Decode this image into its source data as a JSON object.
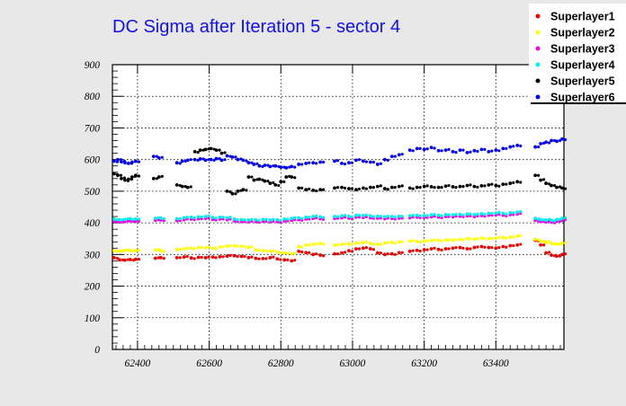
{
  "chart_data": {
    "type": "scatter",
    "title": "DC Sigma after Iteration 5 - sector 4",
    "xlabel": "",
    "ylabel": "",
    "xlim": [
      62330,
      63590
    ],
    "ylim": [
      0,
      900
    ],
    "x_ticks": [
      62400,
      62600,
      62800,
      63000,
      63200,
      63400
    ],
    "y_ticks": [
      0,
      100,
      200,
      300,
      400,
      500,
      600,
      700,
      800,
      900
    ],
    "grid": true,
    "legend_position": "top-right",
    "colors": {
      "background": "#e8e8e8",
      "plot_background": "#ffffff",
      "title": "#1010ee"
    },
    "series": [
      {
        "name": "Superlayer1",
        "color": "#ee0000",
        "x": [
          62335,
          62350,
          62365,
          62380,
          62395,
          62450,
          62465,
          62510,
          62530,
          62550,
          62570,
          62590,
          62610,
          62630,
          62650,
          62670,
          62690,
          62710,
          62730,
          62750,
          62770,
          62790,
          62810,
          62830,
          62850,
          62870,
          62890,
          62910,
          62950,
          62970,
          62990,
          63010,
          63030,
          63050,
          63070,
          63090,
          63110,
          63130,
          63160,
          63180,
          63200,
          63220,
          63240,
          63260,
          63280,
          63300,
          63320,
          63340,
          63360,
          63380,
          63400,
          63420,
          63440,
          63460,
          63510,
          63525,
          63540,
          63555,
          63570,
          63585
        ],
        "y": [
          290,
          283,
          282,
          284,
          285,
          288,
          290,
          290,
          292,
          289,
          291,
          290,
          292,
          293,
          295,
          296,
          294,
          290,
          288,
          287,
          290,
          286,
          283,
          280,
          310,
          306,
          300,
          298,
          302,
          305,
          312,
          318,
          320,
          318,
          305,
          300,
          302,
          306,
          310,
          313,
          315,
          318,
          316,
          318,
          320,
          322,
          318,
          322,
          325,
          322,
          320,
          325,
          328,
          330,
          345,
          330,
          305,
          298,
          295,
          300
        ]
      },
      {
        "name": "Superlayer2",
        "color": "#ffff00",
        "x": [
          62335,
          62350,
          62365,
          62380,
          62395,
          62450,
          62465,
          62510,
          62530,
          62550,
          62570,
          62590,
          62610,
          62630,
          62650,
          62670,
          62690,
          62710,
          62730,
          62750,
          62770,
          62790,
          62810,
          62830,
          62850,
          62870,
          62890,
          62910,
          62950,
          62970,
          62990,
          63010,
          63030,
          63050,
          63070,
          63090,
          63110,
          63130,
          63160,
          63180,
          63200,
          63220,
          63240,
          63260,
          63280,
          63300,
          63320,
          63340,
          63360,
          63380,
          63400,
          63420,
          63440,
          63460,
          63510,
          63525,
          63540,
          63555,
          63570,
          63585
        ],
        "y": [
          312,
          311,
          313,
          312,
          313,
          314,
          312,
          316,
          318,
          320,
          322,
          321,
          320,
          324,
          326,
          328,
          326,
          322,
          315,
          312,
          310,
          308,
          305,
          302,
          325,
          330,
          332,
          335,
          330,
          332,
          334,
          336,
          338,
          335,
          332,
          336,
          338,
          340,
          342,
          341,
          343,
          344,
          345,
          346,
          345,
          348,
          350,
          348,
          352,
          350,
          352,
          354,
          355,
          358,
          348,
          342,
          338,
          335,
          333,
          335
        ]
      },
      {
        "name": "Superlayer3",
        "color": "#ee00ee",
        "x": [
          62335,
          62350,
          62365,
          62380,
          62395,
          62450,
          62465,
          62510,
          62530,
          62550,
          62570,
          62590,
          62610,
          62630,
          62650,
          62670,
          62690,
          62710,
          62730,
          62750,
          62770,
          62790,
          62810,
          62830,
          62850,
          62870,
          62890,
          62910,
          62950,
          62970,
          62990,
          63010,
          63030,
          63050,
          63070,
          63090,
          63110,
          63130,
          63160,
          63180,
          63200,
          63220,
          63240,
          63260,
          63280,
          63300,
          63320,
          63340,
          63360,
          63380,
          63400,
          63420,
          63440,
          63460,
          63510,
          63525,
          63540,
          63555,
          63570,
          63585
        ],
        "y": [
          405,
          403,
          404,
          406,
          405,
          408,
          409,
          407,
          410,
          412,
          413,
          414,
          411,
          412,
          410,
          406,
          404,
          403,
          404,
          405,
          403,
          404,
          406,
          408,
          410,
          412,
          414,
          413,
          414,
          416,
          415,
          418,
          417,
          416,
          415,
          413,
          414,
          415,
          416,
          418,
          417,
          419,
          418,
          420,
          419,
          421,
          422,
          420,
          423,
          424,
          425,
          424,
          426,
          428,
          408,
          404,
          403,
          402,
          405,
          408
        ]
      },
      {
        "name": "Superlayer4",
        "color": "#00eeee",
        "x": [
          62335,
          62350,
          62365,
          62380,
          62395,
          62450,
          62465,
          62510,
          62530,
          62550,
          62570,
          62590,
          62610,
          62630,
          62650,
          62670,
          62690,
          62710,
          62730,
          62750,
          62770,
          62790,
          62810,
          62830,
          62850,
          62870,
          62890,
          62910,
          62950,
          62970,
          62990,
          63010,
          63030,
          63050,
          63070,
          63090,
          63110,
          63130,
          63160,
          63180,
          63200,
          63220,
          63240,
          63260,
          63280,
          63300,
          63320,
          63340,
          63360,
          63380,
          63400,
          63420,
          63440,
          63460,
          63510,
          63525,
          63540,
          63555,
          63570,
          63585
        ],
        "y": [
          412,
          410,
          411,
          413,
          412,
          414,
          415,
          413,
          416,
          418,
          419,
          420,
          417,
          418,
          416,
          412,
          410,
          409,
          410,
          411,
          409,
          410,
          412,
          414,
          416,
          418,
          420,
          419,
          420,
          422,
          421,
          424,
          423,
          422,
          421,
          419,
          420,
          421,
          422,
          424,
          423,
          425,
          424,
          426,
          425,
          427,
          428,
          426,
          429,
          430,
          431,
          430,
          432,
          434,
          414,
          410,
          409,
          408,
          411,
          414
        ]
      },
      {
        "name": "Superlayer5",
        "color": "#000000",
        "x": [
          62335,
          62345,
          62355,
          62365,
          62375,
          62385,
          62395,
          62445,
          62460,
          62510,
          62525,
          62540,
          62560,
          62575,
          62590,
          62605,
          62620,
          62635,
          62650,
          62665,
          62680,
          62695,
          62710,
          62725,
          62740,
          62755,
          62770,
          62785,
          62800,
          62815,
          62830,
          62850,
          62870,
          62890,
          62910,
          62950,
          62970,
          62990,
          63010,
          63030,
          63050,
          63070,
          63090,
          63110,
          63130,
          63160,
          63180,
          63200,
          63220,
          63240,
          63260,
          63280,
          63300,
          63320,
          63340,
          63360,
          63380,
          63400,
          63420,
          63440,
          63460,
          63510,
          63525,
          63540,
          63555,
          63570,
          63585
        ],
        "y": [
          555,
          550,
          540,
          535,
          538,
          545,
          550,
          540,
          545,
          520,
          515,
          512,
          625,
          630,
          632,
          635,
          630,
          620,
          500,
          492,
          500,
          505,
          545,
          535,
          538,
          532,
          525,
          520,
          530,
          545,
          545,
          510,
          505,
          503,
          505,
          510,
          512,
          508,
          505,
          510,
          512,
          515,
          508,
          512,
          515,
          510,
          512,
          515,
          514,
          512,
          516,
          514,
          515,
          518,
          515,
          517,
          520,
          518,
          522,
          525,
          530,
          550,
          535,
          525,
          518,
          512,
          510
        ]
      },
      {
        "name": "Superlayer6",
        "color": "#0000ee",
        "x": [
          62335,
          62345,
          62355,
          62365,
          62375,
          62385,
          62395,
          62445,
          62460,
          62510,
          62525,
          62540,
          62560,
          62575,
          62590,
          62605,
          62620,
          62635,
          62650,
          62665,
          62680,
          62695,
          62710,
          62725,
          62740,
          62755,
          62770,
          62785,
          62800,
          62815,
          62830,
          62850,
          62870,
          62890,
          62910,
          62950,
          62970,
          62990,
          63010,
          63030,
          63050,
          63070,
          63090,
          63110,
          63130,
          63160,
          63180,
          63200,
          63220,
          63240,
          63260,
          63280,
          63300,
          63320,
          63340,
          63360,
          63380,
          63400,
          63420,
          63440,
          63460,
          63510,
          63525,
          63540,
          63555,
          63570,
          63585
        ],
        "y": [
          595,
          600,
          593,
          590,
          588,
          592,
          595,
          610,
          605,
          590,
          595,
          598,
          600,
          602,
          598,
          600,
          603,
          598,
          612,
          608,
          600,
          598,
          590,
          585,
          580,
          582,
          578,
          580,
          576,
          574,
          578,
          585,
          588,
          590,
          592,
          595,
          588,
          590,
          598,
          595,
          592,
          585,
          600,
          610,
          615,
          630,
          635,
          632,
          638,
          628,
          630,
          625,
          630,
          622,
          628,
          632,
          625,
          630,
          635,
          640,
          645,
          640,
          650,
          655,
          660,
          658,
          665
        ]
      }
    ]
  }
}
